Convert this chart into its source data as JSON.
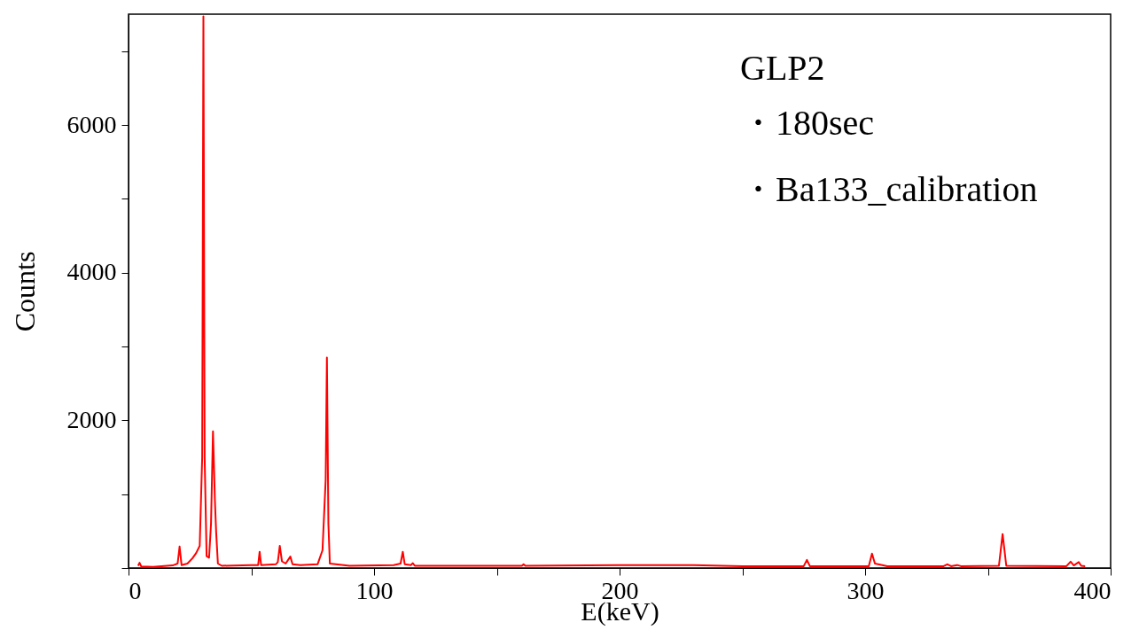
{
  "chart_data": {
    "type": "line",
    "xlabel": "E(keV)",
    "ylabel": "Counts",
    "annotations": [
      "GLP2",
      "・180sec",
      "・Ba133_calibration"
    ],
    "xlim": [
      0,
      400
    ],
    "ylim": [
      0,
      7500
    ],
    "xticks": [
      0,
      {
        "value": 50,
        "label": null
      },
      100,
      {
        "value": 150,
        "label": null
      },
      200,
      {
        "value": 250,
        "label": null
      },
      300,
      {
        "value": 350,
        "label": null
      },
      400
    ],
    "yticks": [
      {
        "value": 0,
        "label": null
      },
      {
        "value": 1000,
        "label": null
      },
      2000,
      {
        "value": 3000,
        "label": null
      },
      4000,
      {
        "value": 5000,
        "label": null
      },
      6000,
      {
        "value": 7000,
        "label": null
      }
    ],
    "grid": false,
    "marker": "none",
    "line_style": "solid",
    "series": [
      {
        "color": "#ff0000",
        "x": [
          3.9,
          4.5,
          5.2,
          10,
          18,
          20,
          20.8,
          21.6,
          24,
          26,
          27.5,
          29,
          30,
          30.5,
          31,
          31.8,
          32.8,
          33.6,
          34.4,
          35.2,
          35.7,
          36.4,
          38,
          50,
          52.8,
          53.4,
          54,
          60,
          60.8,
          61.6,
          62.5,
          64,
          65.9,
          66.8,
          70,
          77,
          79,
          80.3,
          80.8,
          81.4,
          82,
          90,
          108,
          110.8,
          111.7,
          112.5,
          115,
          115.8,
          116.6,
          140,
          160.2,
          160.9,
          161.6,
          200,
          230,
          250,
          275,
          276.3,
          277.5,
          301.5,
          302.8,
          304,
          307,
          309,
          332,
          333.5,
          335,
          337.5,
          339,
          354.5,
          356,
          357.5,
          382,
          383.7,
          385,
          387,
          388,
          389.6
        ],
        "values": [
          30,
          70,
          20,
          15,
          35,
          60,
          290,
          40,
          60,
          130,
          200,
          300,
          1500,
          7470,
          1500,
          160,
          140,
          600,
          1850,
          900,
          480,
          60,
          30,
          40,
          40,
          220,
          40,
          50,
          80,
          300,
          90,
          60,
          155,
          50,
          40,
          50,
          240,
          1200,
          2850,
          600,
          60,
          30,
          40,
          60,
          220,
          50,
          40,
          65,
          30,
          30,
          30,
          50,
          30,
          40,
          40,
          25,
          25,
          110,
          25,
          25,
          195,
          60,
          40,
          25,
          25,
          50,
          25,
          40,
          25,
          30,
          460,
          30,
          25,
          85,
          35,
          80,
          30,
          25
        ]
      }
    ]
  }
}
